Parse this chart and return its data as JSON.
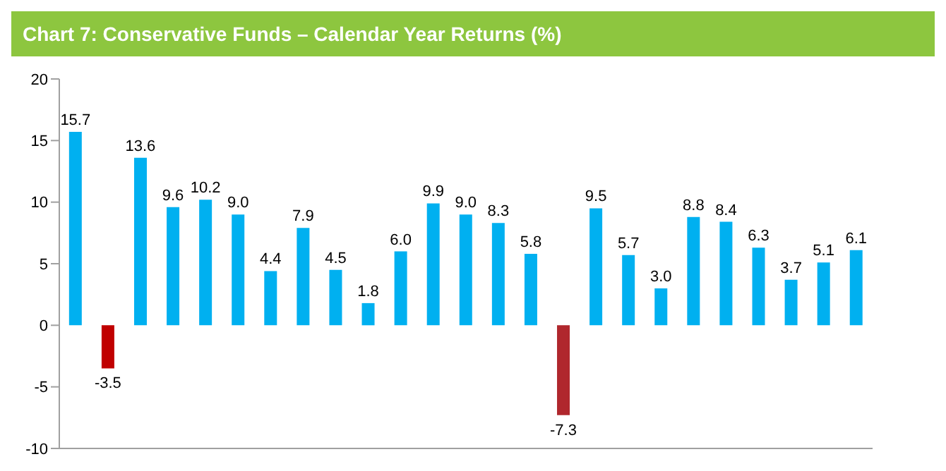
{
  "chart_data": {
    "type": "bar",
    "title": "Chart 7:  Conservative Funds – Calendar Year Returns (%)",
    "categories": [
      null,
      null,
      null,
      null,
      null,
      null,
      null,
      null,
      null,
      null,
      null,
      null,
      null,
      null,
      null,
      null,
      null,
      null,
      null,
      null,
      null,
      null,
      null,
      null,
      null
    ],
    "values": [
      15.7,
      -3.5,
      13.6,
      9.6,
      10.2,
      9.0,
      4.4,
      7.9,
      4.5,
      1.8,
      6.0,
      9.9,
      9.0,
      8.3,
      5.8,
      -7.3,
      9.5,
      5.7,
      3.0,
      8.8,
      8.4,
      6.3,
      3.7,
      5.1,
      6.1
    ],
    "colors": [
      "#00b0f0",
      "#c00000",
      "#00b0f0",
      "#00b0f0",
      "#00b0f0",
      "#00b0f0",
      "#00b0f0",
      "#00b0f0",
      "#00b0f0",
      "#00b0f0",
      "#00b0f0",
      "#00b0f0",
      "#00b0f0",
      "#00b0f0",
      "#00b0f0",
      "#b0272d",
      "#00b0f0",
      "#00b0f0",
      "#00b0f0",
      "#00b0f0",
      "#00b0f0",
      "#00b0f0",
      "#00b0f0",
      "#00b0f0",
      "#00b0f0"
    ],
    "value_labels": [
      "15.7",
      "-3.5",
      "13.6",
      "9.6",
      "10.2",
      "9.0",
      "4.4",
      "7.9",
      "4.5",
      "1.8",
      "6.0",
      "9.9",
      "9.0",
      "8.3",
      "5.8",
      "-7.3",
      "9.5",
      "5.7",
      "3.0",
      "8.8",
      "8.4",
      "6.3",
      "3.7",
      "5.1",
      "6.1"
    ],
    "ylim": [
      -10,
      20
    ],
    "yticks": [
      -10,
      -5,
      0,
      5,
      10,
      15,
      20
    ],
    "grid": false,
    "legend": false,
    "tick_labels": "y"
  }
}
